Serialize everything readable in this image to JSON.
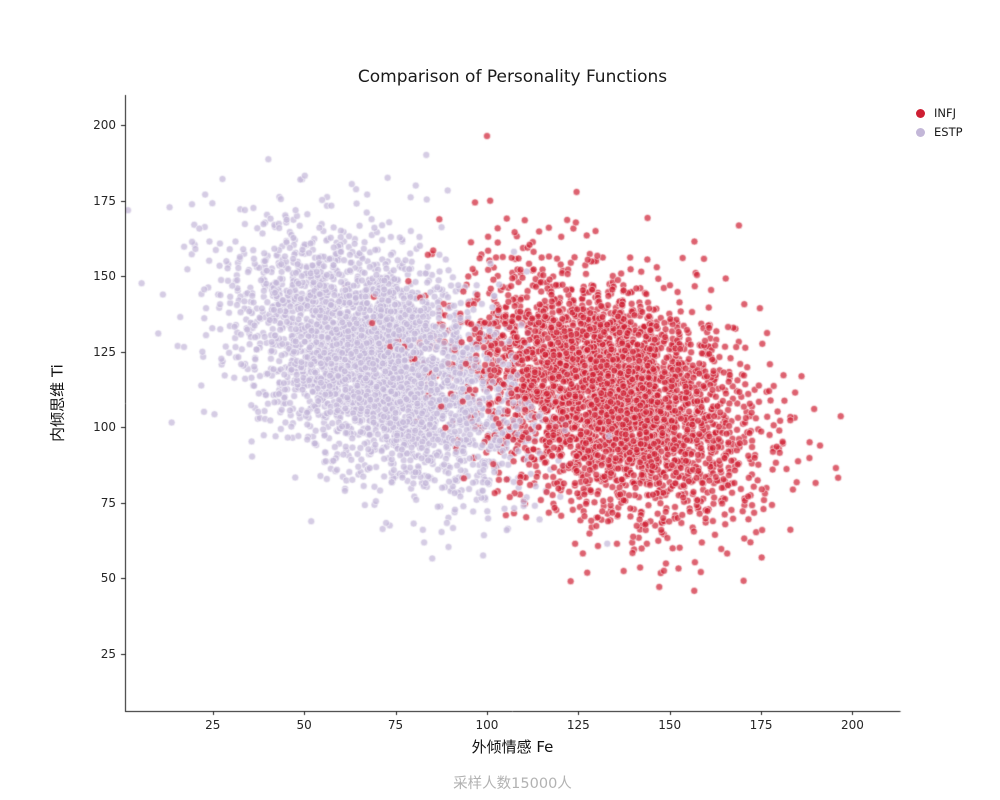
{
  "chart_data": {
    "type": "scatter",
    "title": "Comparison of Personality Functions",
    "xlabel": "外倾情感 Fe",
    "ylabel": "内倾思维 Ti",
    "caption": "采样人数15000人",
    "xlim": [
      1,
      213
    ],
    "ylim": [
      6,
      210
    ],
    "xticks": [
      25,
      50,
      75,
      100,
      125,
      150,
      175,
      200
    ],
    "yticks": [
      25,
      50,
      75,
      100,
      125,
      150,
      175,
      200
    ],
    "grid": false,
    "legend_position": "upper-right-outside",
    "axis_color": "#1a1a1a",
    "marker": {
      "radius": 3.5,
      "alpha": 0.7,
      "edge_color": "#ffffff",
      "edge_width": 0.8
    },
    "series": [
      {
        "name": "INFJ",
        "color": "#CE1F33",
        "n": 3500,
        "mean_x": 134,
        "mean_y": 110,
        "std_x": 19,
        "std_y": 20,
        "corr": -0.35,
        "seed": 101
      },
      {
        "name": "ESTP",
        "color": "#C3B7D8",
        "n": 3500,
        "mean_x": 70,
        "mean_y": 122,
        "std_x": 19,
        "std_y": 20,
        "corr": -0.45,
        "seed": 202
      }
    ]
  }
}
